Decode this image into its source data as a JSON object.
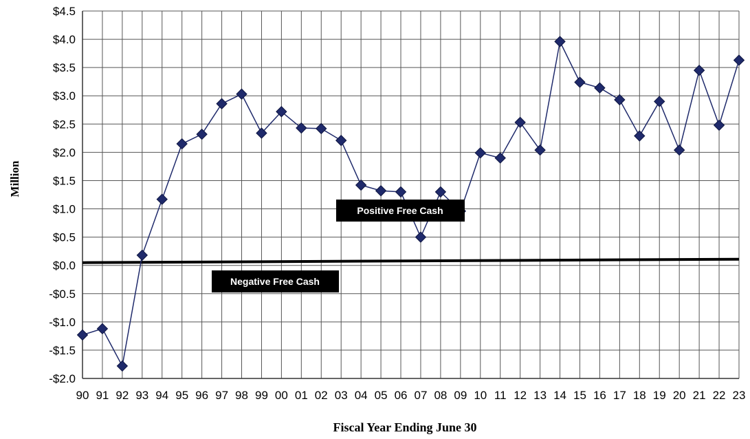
{
  "chart_data": {
    "type": "line",
    "xlabel": "Fiscal Year Ending June 30",
    "ylabel": "Million",
    "ylim": [
      -2.0,
      4.5
    ],
    "y_ticks": [
      4.5,
      4.0,
      3.5,
      3.0,
      2.5,
      2.0,
      1.5,
      1.0,
      0.5,
      0.0,
      -0.5,
      -1.0,
      -1.5,
      -2.0
    ],
    "y_tick_labels": [
      "$4.5",
      "$4.0",
      "$3.5",
      "$3.0",
      "$2.5",
      "$2.0",
      "$1.5",
      "$1.0",
      "$0.5",
      "$0.0",
      "-$0.5",
      "-$1.0",
      "-$1.5",
      "-$2.0"
    ],
    "categories": [
      "90",
      "91",
      "92",
      "93",
      "94",
      "95",
      "96",
      "97",
      "98",
      "99",
      "00",
      "01",
      "02",
      "03",
      "04",
      "05",
      "06",
      "07",
      "08",
      "09",
      "10",
      "11",
      "12",
      "13",
      "14",
      "15",
      "16",
      "17",
      "18",
      "19",
      "20",
      "21",
      "22",
      "23"
    ],
    "grid": true,
    "series": [
      {
        "values": [
          -1.23,
          -1.12,
          -1.78,
          0.18,
          1.17,
          2.15,
          2.32,
          2.86,
          3.03,
          2.34,
          2.72,
          2.43,
          2.42,
          2.21,
          1.42,
          1.32,
          1.3,
          0.5,
          1.3,
          0.96,
          1.99,
          1.9,
          2.53,
          2.04,
          3.96,
          3.24,
          3.14,
          2.93,
          2.29,
          2.9,
          2.04,
          3.45,
          2.48,
          3.63
        ],
        "color": "#1f2a6b",
        "marker": "diamond"
      }
    ],
    "reference_line": {
      "value": 0.0,
      "color": "#000000"
    },
    "annotations": [
      {
        "text": "Positive Free Cash"
      },
      {
        "text": "Negative Free Cash"
      }
    ]
  }
}
